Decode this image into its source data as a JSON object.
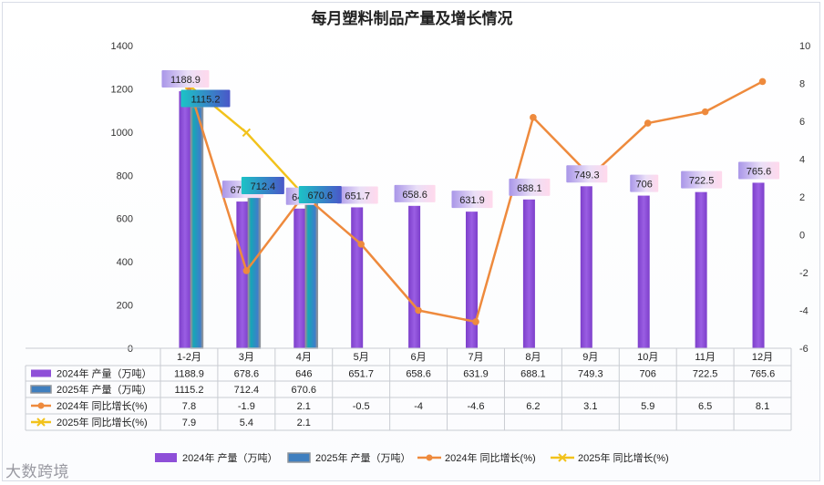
{
  "chart_data": {
    "type": "bar",
    "title": "每月塑料制品产量及增长情况",
    "categories": [
      "1-2月",
      "3月",
      "4月",
      "5月",
      "6月",
      "7月",
      "8月",
      "9月",
      "10月",
      "11月",
      "12月"
    ],
    "left_axis": {
      "min": 0,
      "max": 1400,
      "ticks": [
        0,
        200,
        400,
        600,
        800,
        1000,
        1200,
        1400
      ]
    },
    "right_axis": {
      "min": -6,
      "max": 10,
      "ticks": [
        -6,
        -4,
        -2,
        0,
        2,
        4,
        6,
        8,
        10
      ]
    },
    "bar_series": [
      {
        "name": "2024年 产量（万吨）",
        "color": "#8e4fd8",
        "values": [
          1188.9,
          678.6,
          646,
          651.7,
          658.6,
          631.9,
          688.1,
          749.3,
          706,
          722.5,
          765.6
        ],
        "labels": [
          "1188.9",
          "678.6",
          "646",
          "651.7",
          "658.6",
          "631.9",
          "688.1",
          "749.3",
          "706",
          "722.5",
          "765.6"
        ]
      },
      {
        "name": "2025年 产量（万吨）",
        "color": "#3f7fbf",
        "values": [
          1115.2,
          712.4,
          670.6,
          null,
          null,
          null,
          null,
          null,
          null,
          null,
          null
        ],
        "labels": [
          "1115.2",
          "712.4",
          "670.6",
          "",
          "",
          "",
          "",
          "",
          "",
          "",
          ""
        ]
      }
    ],
    "line_series": [
      {
        "name": "2024年 同比增长(%)",
        "color": "#ee8a3d",
        "values": [
          7.8,
          -1.9,
          2.1,
          -0.5,
          -4,
          -4.6,
          6.2,
          3.1,
          5.9,
          6.5,
          8.1
        ],
        "labels": [
          "7.8",
          "-1.9",
          "2.1",
          "-0.5",
          "-4",
          "-4.6",
          "6.2",
          "3.1",
          "5.9",
          "6.5",
          "8.1"
        ]
      },
      {
        "name": "2025年 同比增长(%)",
        "color": "#f2c21b",
        "values": [
          7.9,
          5.4,
          2.1,
          null,
          null,
          null,
          null,
          null,
          null,
          null,
          null
        ],
        "labels": [
          "7.9",
          "5.4",
          "2.1",
          "",
          "",
          "",
          "",
          "",
          "",
          "",
          ""
        ]
      }
    ]
  },
  "watermark": "大数跨境"
}
